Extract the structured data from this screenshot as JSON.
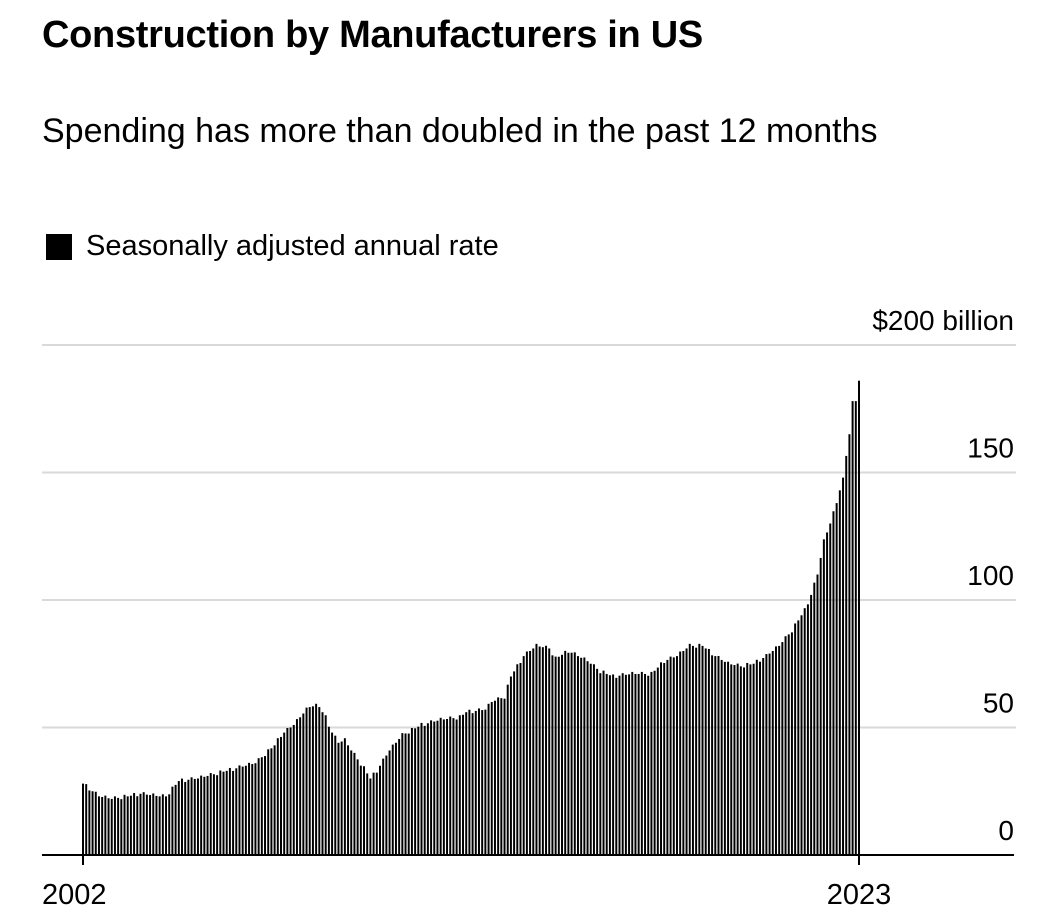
{
  "header": {
    "title": "Construction by Manufacturers in US",
    "subtitle": "Spending has more than doubled in the past 12 months",
    "legend_label": "Seasonally adjusted annual rate"
  },
  "colors": {
    "bars": "#000000",
    "grid": "#d9d9d9",
    "axis": "#000000"
  },
  "chart_data": {
    "type": "bar",
    "title": "Construction by Manufacturers in US",
    "subtitle": "Spending has more than doubled in the past 12 months",
    "legend": [
      "Seasonally adjusted annual rate"
    ],
    "xlabel": "",
    "ylabel": "",
    "unit": "$ billion",
    "frequency": "monthly",
    "x_start": "2002-01",
    "x_end": "2023-04",
    "x_tick_labels": [
      "2002",
      "2023"
    ],
    "ylim": [
      0,
      200
    ],
    "y_ticks": [
      0,
      50,
      100,
      150,
      200
    ],
    "y_tick_labels": [
      "0",
      "50",
      "100",
      "150",
      "$200 billion"
    ],
    "grid": true,
    "anchors": [
      [
        0,
        28
      ],
      [
        2,
        26
      ],
      [
        5,
        23
      ],
      [
        9,
        22
      ],
      [
        14,
        23
      ],
      [
        18,
        24
      ],
      [
        24,
        23
      ],
      [
        26,
        23
      ],
      [
        30,
        29
      ],
      [
        36,
        30
      ],
      [
        42,
        32
      ],
      [
        48,
        34
      ],
      [
        54,
        36
      ],
      [
        60,
        43
      ],
      [
        62,
        47
      ],
      [
        66,
        51
      ],
      [
        70,
        57
      ],
      [
        72,
        59
      ],
      [
        74,
        58
      ],
      [
        76,
        54
      ],
      [
        78,
        48
      ],
      [
        80,
        44
      ],
      [
        82,
        45
      ],
      [
        84,
        41
      ],
      [
        88,
        34
      ],
      [
        90,
        30
      ],
      [
        92,
        33
      ],
      [
        96,
        41
      ],
      [
        100,
        47
      ],
      [
        106,
        51
      ],
      [
        112,
        53
      ],
      [
        118,
        54
      ],
      [
        120,
        56
      ],
      [
        126,
        57
      ],
      [
        128,
        60
      ],
      [
        132,
        62
      ],
      [
        134,
        70
      ],
      [
        138,
        78
      ],
      [
        142,
        82
      ],
      [
        146,
        81
      ],
      [
        148,
        77
      ],
      [
        152,
        80
      ],
      [
        158,
        76
      ],
      [
        162,
        72
      ],
      [
        166,
        70
      ],
      [
        172,
        71
      ],
      [
        178,
        71
      ],
      [
        182,
        76
      ],
      [
        186,
        78
      ],
      [
        190,
        82
      ],
      [
        194,
        82
      ],
      [
        198,
        78
      ],
      [
        202,
        75
      ],
      [
        206,
        74
      ],
      [
        210,
        75
      ],
      [
        214,
        78
      ],
      [
        218,
        82
      ],
      [
        222,
        88
      ],
      [
        226,
        96
      ],
      [
        228,
        102
      ],
      [
        230,
        110
      ],
      [
        232,
        123
      ],
      [
        234,
        130
      ],
      [
        236,
        138
      ],
      [
        238,
        148
      ],
      [
        240,
        165
      ],
      [
        241,
        178
      ],
      [
        242,
        178
      ],
      [
        243,
        186
      ]
    ]
  }
}
